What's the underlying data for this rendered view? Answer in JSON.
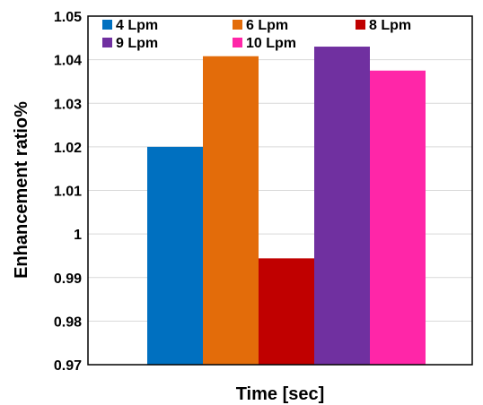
{
  "chart_data": {
    "type": "bar",
    "xlabel": "Time  [sec]",
    "ylabel": "Enhancement  ratio%",
    "ylim": [
      0.97,
      1.05
    ],
    "yticks": [
      "0.97",
      "0.98",
      "0.99",
      "1",
      "1.01",
      "1.02",
      "1.03",
      "1.04",
      "1.05"
    ],
    "grid": true,
    "legend_position": "top",
    "series": [
      {
        "name": "4 Lpm",
        "value": 1.02,
        "color": "#0070c0"
      },
      {
        "name": "6 Lpm",
        "value": 1.0408,
        "color": "#e36c0a"
      },
      {
        "name": "8 Lpm",
        "value": 0.9944,
        "color": "#c00000"
      },
      {
        "name": "9 Lpm",
        "value": 1.043,
        "color": "#7030a0"
      },
      {
        "name": "10 Lpm",
        "value": 1.0375,
        "color": "#ff26a8"
      }
    ]
  }
}
